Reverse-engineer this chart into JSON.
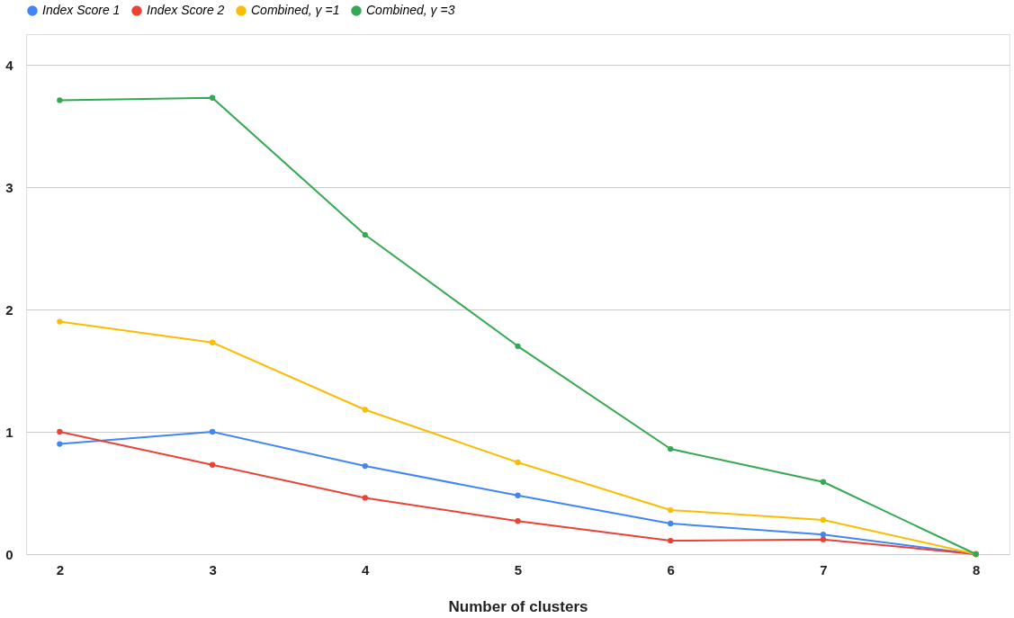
{
  "chart_data": {
    "type": "line",
    "xlabel": "Number of clusters",
    "categories": [
      "2",
      "3",
      "4",
      "5",
      "6",
      "7",
      "8"
    ],
    "series": [
      {
        "name": "Index Score 1",
        "color": "#4285f4",
        "values": [
          0.9,
          1.0,
          0.72,
          0.48,
          0.25,
          0.16,
          0
        ]
      },
      {
        "name": "Index Score 2",
        "color": "#ea4335",
        "values": [
          1.0,
          0.73,
          0.46,
          0.27,
          0.11,
          0.12,
          0
        ]
      },
      {
        "name": "Combined, γ =1",
        "color": "#fbbc04",
        "values": [
          1.9,
          1.73,
          1.18,
          0.75,
          0.36,
          0.28,
          0
        ]
      },
      {
        "name": "Combined, γ =3",
        "color": "#34a853",
        "values": [
          3.71,
          3.73,
          2.61,
          1.7,
          0.86,
          0.59,
          0
        ]
      }
    ],
    "ylim": [
      0,
      4.25
    ],
    "yticks": [
      0,
      1,
      2,
      3,
      4
    ],
    "grid": "y",
    "legend": "top",
    "marker": "circle",
    "line_style": "solid"
  }
}
